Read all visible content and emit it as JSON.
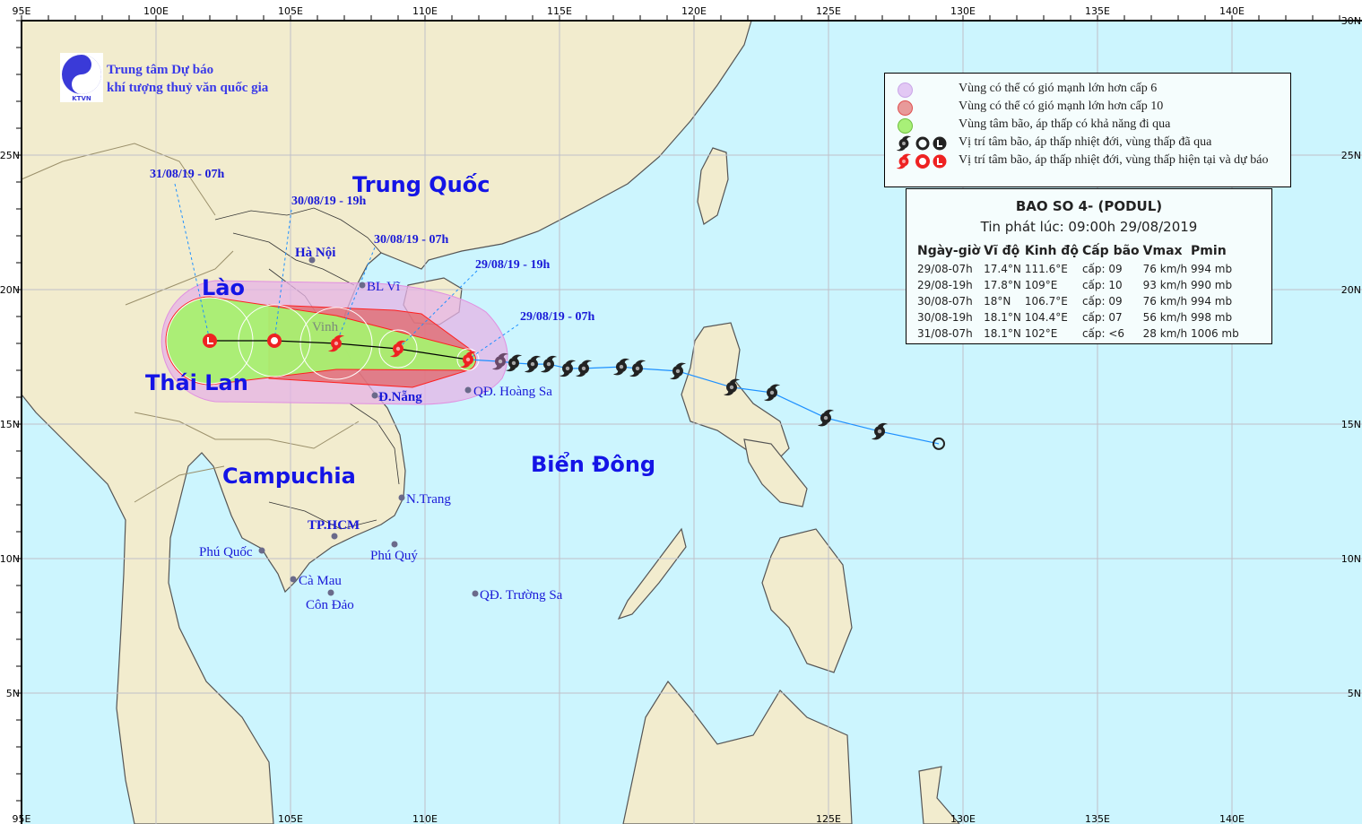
{
  "header": {
    "org_line1": "Trung tâm Dự báo",
    "org_line2": "khí tượng thuỷ văn quốc gia",
    "logo_text": "KTVN"
  },
  "axes": {
    "top_lon_labels": [
      "95E",
      "100E",
      "105E",
      "110E",
      "115E",
      "120E",
      "125E",
      "130E",
      "135E",
      "140E"
    ],
    "bottom_lon_labels": [
      "95E",
      "105E",
      "110E",
      "125E",
      "130E",
      "135E",
      "140E"
    ],
    "lat_labels": [
      "30N",
      "25N",
      "20N",
      "15N",
      "10N",
      "5N"
    ]
  },
  "legend": {
    "items": [
      {
        "label": "Vùng có thể có gió mạnh lớn hơn cấp 6",
        "color": "#e2c8f4"
      },
      {
        "label": "Vùng có thể có gió mạnh lớn hơn cấp 10",
        "color": "#e89a9a"
      },
      {
        "label": "Vùng tâm bão, áp thấp có khả năng đi qua",
        "color": "#a8f078"
      },
      {
        "label": "Vị trí tâm bão, áp thấp nhiệt đới, vùng thấp đã qua",
        "color": "#222222"
      },
      {
        "label": "Vị trí tâm bão, áp thấp nhiệt đới, vùng thấp hiện tại và dự báo",
        "color": "#ee2222"
      }
    ]
  },
  "info": {
    "title": "BAO SO 4- (PODUL)",
    "issued": "Tin phát lúc: 09:00h 29/08/2019",
    "columns": [
      "Ngày-giờ",
      "Vĩ độ",
      "Kinh độ",
      "Cấp bão",
      "Vmax",
      "Pmin"
    ],
    "rows": [
      [
        "29/08-07h",
        "17.4°N",
        "111.6°E",
        "cấp: 09",
        "76 km/h",
        "994 mb"
      ],
      [
        "29/08-19h",
        "17.8°N",
        "109°E",
        "cấp: 10",
        "93 km/h",
        "990 mb"
      ],
      [
        "30/08-07h",
        "18°N",
        "106.7°E",
        "cấp: 09",
        "76 km/h",
        "994 mb"
      ],
      [
        "30/08-19h",
        "18.1°N",
        "104.4°E",
        "cấp: 07",
        "56 km/h",
        "998 mb"
      ],
      [
        "31/08-07h",
        "18.1°N",
        "102°E",
        "cấp: <6",
        "28 km/h",
        "1006 mb"
      ]
    ]
  },
  "forecast_labels": [
    "31/08/19 - 07h",
    "30/08/19 - 19h",
    "30/08/19 - 07h",
    "29/08/19 - 19h",
    "29/08/19 - 07h"
  ],
  "track": {
    "forecast_points": [
      {
        "lat": 17.4,
        "lon": 111.6,
        "type": "storm"
      },
      {
        "lat": 17.8,
        "lon": 109.0,
        "type": "storm"
      },
      {
        "lat": 18.0,
        "lon": 106.7,
        "type": "storm"
      },
      {
        "lat": 18.1,
        "lon": 104.4,
        "type": "depression"
      },
      {
        "lat": 18.1,
        "lon": 102.0,
        "type": "low"
      }
    ],
    "past_points": [
      {
        "lat": 17.33,
        "lon": 112.8,
        "type": "storm"
      },
      {
        "lat": 17.27,
        "lon": 113.3,
        "type": "storm"
      },
      {
        "lat": 17.23,
        "lon": 114.0,
        "type": "storm"
      },
      {
        "lat": 17.23,
        "lon": 114.6,
        "type": "storm"
      },
      {
        "lat": 17.07,
        "lon": 115.3,
        "type": "storm"
      },
      {
        "lat": 17.07,
        "lon": 115.9,
        "type": "storm"
      },
      {
        "lat": 17.13,
        "lon": 117.3,
        "type": "storm"
      },
      {
        "lat": 17.07,
        "lon": 117.9,
        "type": "storm"
      },
      {
        "lat": 16.97,
        "lon": 119.4,
        "type": "storm"
      },
      {
        "lat": 16.37,
        "lon": 121.4,
        "type": "storm"
      },
      {
        "lat": 16.17,
        "lon": 122.9,
        "type": "storm"
      },
      {
        "lat": 15.23,
        "lon": 124.9,
        "type": "storm"
      },
      {
        "lat": 14.73,
        "lon": 126.9,
        "type": "storm"
      },
      {
        "lat": 14.27,
        "lon": 129.1,
        "type": "depression"
      }
    ]
  },
  "countries": [
    "Trung Quốc",
    "Lào",
    "Thái Lan",
    "Campuchia",
    "Biển Đông"
  ],
  "places": [
    "Hà Nội",
    "BL Vĩ",
    "Vinh",
    "Đ.Nẵng",
    "QĐ. Hoàng Sa",
    "N.Trang",
    "TP.HCM",
    "Phú Quốc",
    "Phú Quý",
    "Cà Mau",
    "Côn Đảo",
    "QĐ. Trường Sa"
  ],
  "colors": {
    "sea": "#ccf5fe",
    "land": "#f2ecce",
    "track_line": "#1e90ff",
    "forecast_line": "#000000",
    "label_blue": "#1a1ad8"
  }
}
